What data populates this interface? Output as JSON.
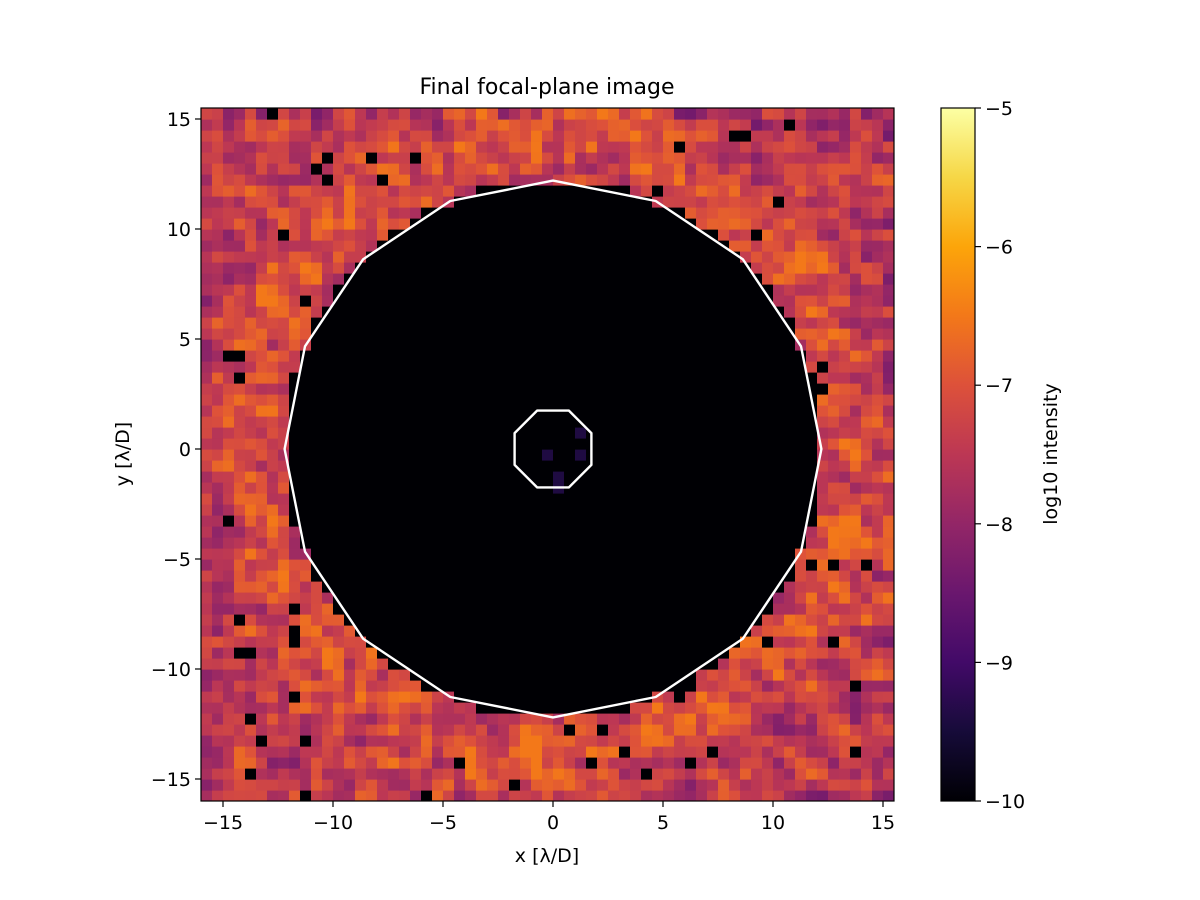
{
  "chart_data": {
    "type": "heatmap",
    "title": "Final focal-plane image",
    "xlabel": "x [λ/D]",
    "ylabel": "y [λ/D]",
    "xlim": [
      -16,
      15.5
    ],
    "ylim": [
      -16,
      15.5
    ],
    "x_ticks": [
      -15,
      -10,
      -5,
      0,
      5,
      10,
      15
    ],
    "y_ticks": [
      -15,
      -10,
      -5,
      0,
      5,
      10,
      15
    ],
    "x_tick_labels": [
      "−15",
      "−10",
      "−5",
      "0",
      "5",
      "10",
      "15"
    ],
    "y_tick_labels": [
      "−15",
      "−10",
      "−5",
      "0",
      "5",
      "10",
      "15"
    ],
    "colormap": "inferno",
    "colorbar": {
      "label": "log10 intensity",
      "range": [
        -10,
        -5
      ],
      "ticks": [
        -10,
        -9,
        -8,
        -7,
        -6,
        -5
      ],
      "tick_labels": [
        "−10",
        "−9",
        "−8",
        "−7",
        "−6",
        "−5"
      ]
    },
    "grid": {
      "cells_per_axis": 63,
      "cell_size": 0.5,
      "first_cell_center": -15.75
    },
    "dark_hole": {
      "inner_radius": 1.8,
      "outer_radius": 12.2,
      "level": -10
    },
    "outside_levels": {
      "typical_range": [
        -8.5,
        -6.5
      ],
      "bright_ring_peak": -6.5,
      "min": -10
    },
    "contour_color": "#ffffff"
  }
}
